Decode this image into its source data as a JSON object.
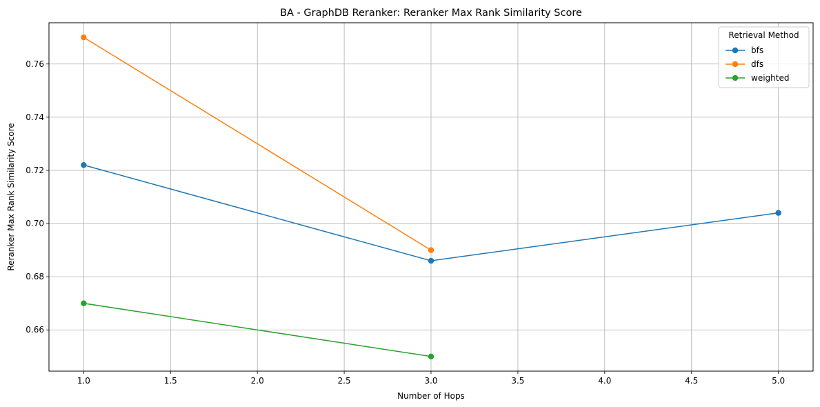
{
  "chart_data": {
    "type": "line",
    "title": "BA - GraphDB Reranker: Reranker Max Rank Similarity Score",
    "xlabel": "Number of Hops",
    "ylabel": "Reranker Max Rank Similarity Score",
    "xlim": [
      0.8,
      5.2
    ],
    "ylim": [
      0.6445,
      0.7755
    ],
    "xticks": [
      1.0,
      1.5,
      2.0,
      2.5,
      3.0,
      3.5,
      4.0,
      4.5,
      5.0
    ],
    "xtick_labels": [
      "1.0",
      "1.5",
      "2.0",
      "2.5",
      "3.0",
      "3.5",
      "4.0",
      "4.5",
      "5.0"
    ],
    "yticks": [
      0.66,
      0.68,
      0.7,
      0.72,
      0.74,
      0.76
    ],
    "ytick_labels": [
      "0.66",
      "0.68",
      "0.70",
      "0.72",
      "0.74",
      "0.76"
    ],
    "grid": true,
    "legend": {
      "title": "Retrieval Method",
      "placement": "top-right"
    },
    "series": [
      {
        "name": "bfs",
        "color": "#1f77b4",
        "x": [
          1,
          3,
          5
        ],
        "y": [
          0.722,
          0.686,
          0.704
        ]
      },
      {
        "name": "dfs",
        "color": "#ff7f0e",
        "x": [
          1,
          3
        ],
        "y": [
          0.77,
          0.69
        ]
      },
      {
        "name": "weighted",
        "color": "#2ca02c",
        "x": [
          1,
          3
        ],
        "y": [
          0.67,
          0.65
        ]
      }
    ]
  }
}
